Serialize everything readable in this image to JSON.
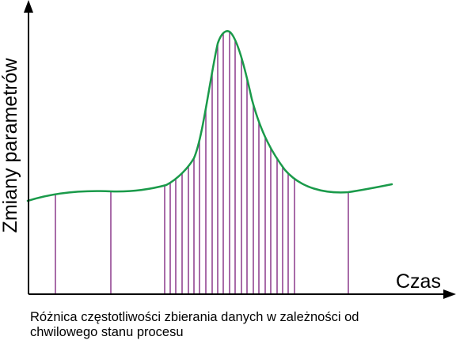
{
  "diagram": {
    "y_axis_label": "Zmiany parametrów",
    "x_axis_label": "Czas",
    "caption_line1": "Różnica częstotliwości zbierania danych w zależności od",
    "caption_line2": "chwilowego stanu procesu",
    "curve_color": "#1a9a4a",
    "sample_line_color": "#8b3a8b",
    "axis_color": "#000000"
  }
}
